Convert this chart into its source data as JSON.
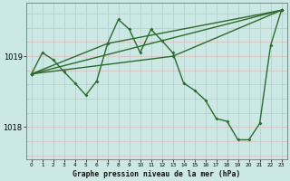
{
  "title": "Graphe pression niveau de la mer (hPa)",
  "background_color": "#cce8e4",
  "line_color": "#2d6a2d",
  "xlim": [
    -0.5,
    23.5
  ],
  "ylim": [
    1017.55,
    1019.75
  ],
  "yticks": [
    1018.0,
    1019.0
  ],
  "xticks": [
    0,
    1,
    2,
    3,
    4,
    5,
    6,
    7,
    8,
    9,
    10,
    11,
    12,
    13,
    14,
    15,
    16,
    17,
    18,
    19,
    20,
    21,
    22,
    23
  ],
  "series1": [
    [
      0,
      1018.75
    ],
    [
      1,
      1019.05
    ],
    [
      2,
      1018.95
    ],
    [
      3,
      1018.78
    ],
    [
      4,
      1018.62
    ],
    [
      5,
      1018.45
    ],
    [
      6,
      1018.65
    ],
    [
      7,
      1019.18
    ],
    [
      8,
      1019.52
    ],
    [
      9,
      1019.38
    ],
    [
      10,
      1019.05
    ],
    [
      11,
      1019.38
    ],
    [
      12,
      1019.22
    ],
    [
      13,
      1019.05
    ],
    [
      14,
      1018.62
    ],
    [
      15,
      1018.52
    ],
    [
      16,
      1018.38
    ],
    [
      17,
      1018.12
    ],
    [
      18,
      1018.08
    ],
    [
      19,
      1017.82
    ],
    [
      20,
      1017.82
    ],
    [
      21,
      1018.05
    ],
    [
      22,
      1019.15
    ],
    [
      23,
      1019.65
    ]
  ],
  "series2": [
    [
      0,
      1018.75
    ],
    [
      23,
      1019.65
    ]
  ],
  "series3": [
    [
      0,
      1018.75
    ],
    [
      7,
      1019.18
    ],
    [
      23,
      1019.65
    ]
  ],
  "series4": [
    [
      0,
      1018.75
    ],
    [
      13,
      1019.0
    ],
    [
      23,
      1019.65
    ]
  ],
  "hgrid_y": [
    1017.6,
    1017.8,
    1018.0,
    1018.2,
    1018.4,
    1018.6,
    1018.8,
    1019.0,
    1019.2,
    1019.4,
    1019.6
  ],
  "marker_size": 2.0,
  "linewidth": 1.0
}
